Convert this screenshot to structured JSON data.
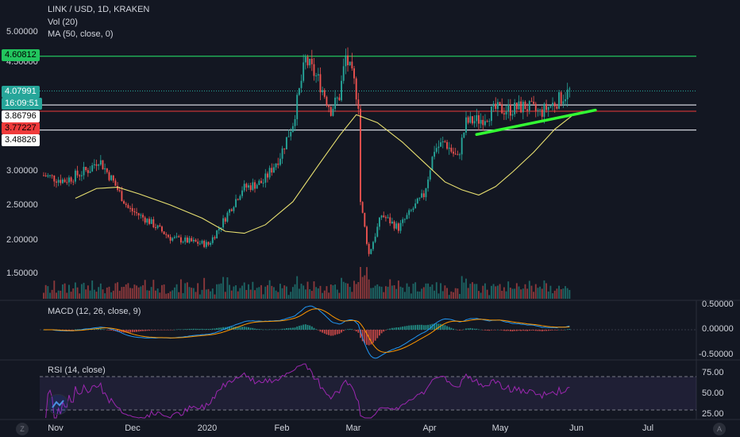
{
  "header": {
    "symbol_line": "LINK / USD, 1D, KRAKEN",
    "volume_indicator": "Vol (20)",
    "ma_indicator": "MA (50, close, 0)"
  },
  "macd_panel": {
    "label": "MACD (12, 26, close, 9)",
    "ticks": [
      "0.50000",
      "0.00000",
      "-0.50000"
    ]
  },
  "rsi_panel": {
    "label": "RSI (14, close)",
    "ticks": [
      "75.00",
      "50.00",
      "25.00"
    ]
  },
  "price_axis": {
    "ticks": [
      "5.00000",
      "4.50000",
      "3.00000",
      "2.50000",
      "2.00000",
      "1.50000"
    ],
    "badges": [
      {
        "text": "4.60812",
        "bg": "#22c55e",
        "fg": "#000000"
      },
      {
        "text": "4.07991",
        "bg": "#26a69a",
        "fg": "#ffffff"
      },
      {
        "text": "16:09:51",
        "bg": "#26a69a",
        "fg": "#ffffff"
      },
      {
        "text": "3.86796",
        "bg": "#ffffff",
        "fg": "#000000"
      },
      {
        "text": "3.77227",
        "bg": "#ef3b3b",
        "fg": "#000000"
      },
      {
        "text": "3.48826",
        "bg": "#ffffff",
        "fg": "#000000"
      }
    ]
  },
  "time_axis": [
    "Nov",
    "Dec",
    "2020",
    "Feb",
    "Mar",
    "Apr",
    "May",
    "Jun",
    "Jul"
  ],
  "corner_buttons": {
    "left": "Z",
    "right": "A"
  },
  "colors": {
    "background": "#131722",
    "up": "#26a69a",
    "down": "#ef5350",
    "ma": "#e8e070",
    "macd": "#2196f3",
    "signal": "#ff9800",
    "rsi": "#9c27b0",
    "trend": "#33ff33"
  },
  "levels": {
    "green_line": 4.60812,
    "gray_line_1": 3.86796,
    "red_line": 3.77227,
    "gray_line_2": 3.48826,
    "last_price": 4.07991
  },
  "chart_data": {
    "type": "candlestick",
    "x_start": "Oct 15",
    "x_end": "May 31",
    "anchors": [
      {
        "d": 0,
        "p": 2.8
      },
      {
        "d": 10,
        "p": 2.72
      },
      {
        "d": 22,
        "p": 2.9
      },
      {
        "d": 26,
        "p": 3.05
      },
      {
        "d": 33,
        "p": 2.7
      },
      {
        "d": 40,
        "p": 2.3
      },
      {
        "d": 50,
        "p": 2.1
      },
      {
        "d": 60,
        "p": 1.85
      },
      {
        "d": 72,
        "p": 1.78
      },
      {
        "d": 78,
        "p": 1.75
      },
      {
        "d": 84,
        "p": 2.05
      },
      {
        "d": 94,
        "p": 2.6
      },
      {
        "d": 104,
        "p": 2.7
      },
      {
        "d": 112,
        "p": 3.1
      },
      {
        "d": 118,
        "p": 3.6
      },
      {
        "d": 124,
        "p": 4.55
      },
      {
        "d": 130,
        "p": 4.25
      },
      {
        "d": 136,
        "p": 3.8
      },
      {
        "d": 140,
        "p": 4.0
      },
      {
        "d": 143,
        "p": 4.6
      },
      {
        "d": 147,
        "p": 4.2
      },
      {
        "d": 149,
        "p": 3.9
      },
      {
        "d": 150,
        "p": 2.4
      },
      {
        "d": 154,
        "p": 1.6
      },
      {
        "d": 160,
        "p": 2.2
      },
      {
        "d": 168,
        "p": 2.0
      },
      {
        "d": 175,
        "p": 2.3
      },
      {
        "d": 180,
        "p": 2.5
      },
      {
        "d": 185,
        "p": 3.2
      },
      {
        "d": 190,
        "p": 3.3
      },
      {
        "d": 196,
        "p": 3.05
      },
      {
        "d": 200,
        "p": 3.6
      },
      {
        "d": 207,
        "p": 3.65
      },
      {
        "d": 214,
        "p": 3.8
      },
      {
        "d": 221,
        "p": 3.8
      },
      {
        "d": 228,
        "p": 3.85
      },
      {
        "d": 235,
        "p": 3.75
      },
      {
        "d": 242,
        "p": 3.9
      },
      {
        "d": 246,
        "p": 4.0
      },
      {
        "d": 249,
        "p": 4.08
      }
    ],
    "ma50": [
      {
        "d": 15,
        "p": 2.45
      },
      {
        "d": 25,
        "p": 2.6
      },
      {
        "d": 35,
        "p": 2.62
      },
      {
        "d": 45,
        "p": 2.52
      },
      {
        "d": 60,
        "p": 2.35
      },
      {
        "d": 75,
        "p": 2.15
      },
      {
        "d": 86,
        "p": 1.95
      },
      {
        "d": 95,
        "p": 1.92
      },
      {
        "d": 105,
        "p": 2.05
      },
      {
        "d": 118,
        "p": 2.4
      },
      {
        "d": 130,
        "p": 2.95
      },
      {
        "d": 140,
        "p": 3.4
      },
      {
        "d": 148,
        "p": 3.72
      },
      {
        "d": 158,
        "p": 3.6
      },
      {
        "d": 170,
        "p": 3.3
      },
      {
        "d": 180,
        "p": 3.0
      },
      {
        "d": 190,
        "p": 2.7
      },
      {
        "d": 198,
        "p": 2.58
      },
      {
        "d": 206,
        "p": 2.5
      },
      {
        "d": 214,
        "p": 2.63
      },
      {
        "d": 222,
        "p": 2.85
      },
      {
        "d": 232,
        "p": 3.15
      },
      {
        "d": 242,
        "p": 3.5
      },
      {
        "d": 250,
        "p": 3.7
      }
    ],
    "trendline": [
      {
        "d": 205,
        "p": 3.42
      },
      {
        "d": 265,
        "p": 3.79
      }
    ],
    "ylim": [
      1.3,
      5.1
    ]
  }
}
